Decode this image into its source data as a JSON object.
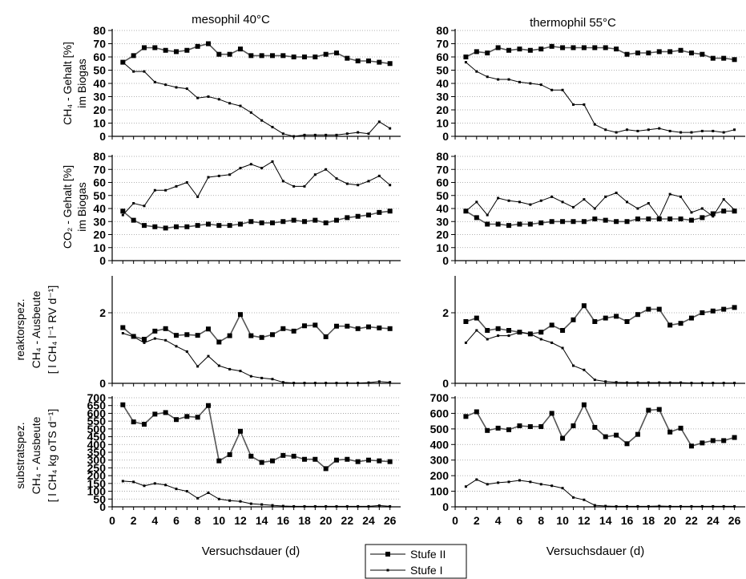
{
  "column_titles": [
    "mesophil 40°C",
    "thermophil 55°C"
  ],
  "xlabels": [
    "Versuchsdauer (d)",
    "Versuchsdauer (d)"
  ],
  "row_ylabels": [
    [
      "im Biogas",
      "CH₄ - Gehalt [%]"
    ],
    [
      "im Biogas",
      "CO₂ - Gehalt [%]"
    ],
    [
      "reaktorspez.",
      "CH₄ - Ausbeute",
      "[ l CH₄ l⁻¹ RV d⁻¹]"
    ],
    [
      "substratspez.",
      "CH₄ - Ausbeute",
      "[ l CH₄ kg oTS d⁻¹]"
    ]
  ],
  "x_ticks": [
    "0",
    "2",
    "4",
    "6",
    "8",
    "10",
    "12",
    "14",
    "16",
    "18",
    "20",
    "22",
    "24",
    "26"
  ],
  "legend": [
    {
      "label": "Stufe II"
    },
    {
      "label": "Stufe I"
    }
  ],
  "chart_data": [
    {
      "type": "line",
      "panel": "CH4 mesophil",
      "xlim": [
        0,
        27
      ],
      "ylim": [
        0,
        80
      ],
      "yticks": [
        0,
        10,
        20,
        30,
        40,
        50,
        60,
        70,
        80
      ],
      "x": [
        1,
        2,
        3,
        4,
        5,
        6,
        7,
        8,
        9,
        10,
        11,
        12,
        13,
        14,
        15,
        16,
        17,
        18,
        19,
        20,
        21,
        22,
        23,
        24,
        25,
        26
      ],
      "series": [
        {
          "name": "Stufe II",
          "values": [
            56,
            61,
            67,
            67,
            65,
            64,
            65,
            68,
            70,
            62,
            62,
            66,
            61,
            61,
            61,
            61,
            60,
            60,
            60,
            62,
            63,
            59,
            57,
            57,
            56,
            55
          ]
        },
        {
          "name": "Stufe I",
          "values": [
            56,
            49,
            49,
            41,
            39,
            37,
            36,
            29,
            30,
            28,
            25,
            23,
            18,
            12,
            7,
            2,
            0,
            1,
            1,
            1,
            1,
            2,
            3,
            2,
            11,
            6
          ]
        }
      ]
    },
    {
      "type": "line",
      "panel": "CH4 thermophil",
      "xlim": [
        0,
        27
      ],
      "ylim": [
        0,
        80
      ],
      "yticks": [
        0,
        10,
        20,
        30,
        40,
        50,
        60,
        70,
        80
      ],
      "x": [
        1,
        2,
        3,
        4,
        5,
        6,
        7,
        8,
        9,
        10,
        11,
        12,
        13,
        14,
        15,
        16,
        17,
        18,
        19,
        20,
        21,
        22,
        23,
        24,
        25,
        26
      ],
      "series": [
        {
          "name": "Stufe II",
          "values": [
            60,
            64,
            63,
            67,
            65,
            66,
            65,
            66,
            68,
            67,
            67,
            67,
            67,
            67,
            66,
            62,
            63,
            63,
            64,
            64,
            65,
            63,
            62,
            59,
            59,
            58
          ]
        },
        {
          "name": "Stufe I",
          "values": [
            56,
            49,
            45,
            43,
            43,
            41,
            40,
            39,
            35,
            35,
            24,
            24,
            9,
            5,
            3,
            5,
            4,
            5,
            6,
            4,
            3,
            3,
            4,
            4,
            3,
            5
          ]
        }
      ]
    },
    {
      "type": "line",
      "panel": "CO2 mesophil",
      "xlim": [
        0,
        27
      ],
      "ylim": [
        0,
        80
      ],
      "yticks": [
        0,
        10,
        20,
        30,
        40,
        50,
        60,
        70,
        80
      ],
      "x": [
        1,
        2,
        3,
        4,
        5,
        6,
        7,
        8,
        9,
        10,
        11,
        12,
        13,
        14,
        15,
        16,
        17,
        18,
        19,
        20,
        21,
        22,
        23,
        24,
        25,
        26
      ],
      "series": [
        {
          "name": "Stufe II",
          "values": [
            38,
            31,
            27,
            26,
            25,
            26,
            26,
            27,
            28,
            27,
            27,
            28,
            30,
            29,
            29,
            30,
            31,
            30,
            31,
            29,
            31,
            33,
            34,
            35,
            37,
            38
          ]
        },
        {
          "name": "Stufe I",
          "values": [
            35,
            44,
            42,
            54,
            54,
            57,
            60,
            49,
            64,
            65,
            66,
            71,
            74,
            71,
            76,
            61,
            57,
            57,
            66,
            70,
            63,
            59,
            58,
            61,
            65,
            58
          ]
        }
      ]
    },
    {
      "type": "line",
      "panel": "CO2 thermophil",
      "xlim": [
        0,
        27
      ],
      "ylim": [
        0,
        80
      ],
      "yticks": [
        0,
        10,
        20,
        30,
        40,
        50,
        60,
        70,
        80
      ],
      "x": [
        1,
        2,
        3,
        4,
        5,
        6,
        7,
        8,
        9,
        10,
        11,
        12,
        13,
        14,
        15,
        16,
        17,
        18,
        19,
        20,
        21,
        22,
        23,
        24,
        25,
        26
      ],
      "series": [
        {
          "name": "Stufe II",
          "values": [
            38,
            33,
            28,
            28,
            27,
            28,
            28,
            29,
            30,
            30,
            30,
            30,
            32,
            31,
            30,
            30,
            32,
            32,
            32,
            32,
            32,
            31,
            33,
            36,
            38,
            38
          ]
        },
        {
          "name": "Stufe I",
          "values": [
            38,
            45,
            35,
            48,
            46,
            45,
            43,
            46,
            49,
            45,
            41,
            47,
            40,
            49,
            52,
            45,
            40,
            44,
            33,
            51,
            49,
            37,
            40,
            34,
            47,
            39
          ]
        }
      ]
    },
    {
      "type": "line",
      "panel": "Ausbeute reaktorspez. mesophil",
      "xlim": [
        0,
        27
      ],
      "ylim": [
        0,
        3
      ],
      "yticks": [
        0,
        2
      ],
      "x": [
        1,
        2,
        3,
        4,
        5,
        6,
        7,
        8,
        9,
        10,
        11,
        12,
        13,
        14,
        15,
        16,
        17,
        18,
        19,
        20,
        21,
        22,
        23,
        24,
        25,
        26
      ],
      "series": [
        {
          "name": "Stufe II",
          "values": [
            1.58,
            1.33,
            1.25,
            1.48,
            1.55,
            1.36,
            1.38,
            1.36,
            1.54,
            1.17,
            1.35,
            1.95,
            1.35,
            1.3,
            1.38,
            1.55,
            1.48,
            1.63,
            1.65,
            1.32,
            1.62,
            1.62,
            1.55,
            1.6,
            1.57,
            1.55
          ]
        },
        {
          "name": "Stufe I",
          "values": [
            1.42,
            1.32,
            1.15,
            1.27,
            1.22,
            1.05,
            0.9,
            0.48,
            0.77,
            0.5,
            0.4,
            0.35,
            0.2,
            0.15,
            0.12,
            0.03,
            0.01,
            0.01,
            0.01,
            0.01,
            0.01,
            0.01,
            0.01,
            0.02,
            0.05,
            0.03
          ]
        }
      ]
    },
    {
      "type": "line",
      "panel": "Ausbeute reaktorspez. thermophil",
      "xlim": [
        0,
        27
      ],
      "ylim": [
        0,
        3
      ],
      "yticks": [
        0,
        2
      ],
      "x": [
        1,
        2,
        3,
        4,
        5,
        6,
        7,
        8,
        9,
        10,
        11,
        12,
        13,
        14,
        15,
        16,
        17,
        18,
        19,
        20,
        21,
        22,
        23,
        24,
        25,
        26
      ],
      "series": [
        {
          "name": "Stufe II",
          "values": [
            1.75,
            1.85,
            1.5,
            1.55,
            1.5,
            1.45,
            1.4,
            1.45,
            1.65,
            1.5,
            1.8,
            2.2,
            1.75,
            1.85,
            1.9,
            1.75,
            1.95,
            2.1,
            2.1,
            1.65,
            1.7,
            1.85,
            2.0,
            2.05,
            2.1,
            2.15
          ]
        },
        {
          "name": "Stufe I",
          "values": [
            1.15,
            1.5,
            1.25,
            1.35,
            1.35,
            1.45,
            1.4,
            1.25,
            1.15,
            1.0,
            0.5,
            0.38,
            0.1,
            0.05,
            0.03,
            0.02,
            0.02,
            0.02,
            0.02,
            0.02,
            0.02,
            0.01,
            0.01,
            0.01,
            0.01,
            0.01
          ]
        }
      ]
    },
    {
      "type": "line",
      "panel": "Ausbeute substratspez. mesophil",
      "xlim": [
        0,
        27
      ],
      "ylim": [
        0,
        700
      ],
      "yticks": [
        0,
        50,
        100,
        150,
        200,
        250,
        300,
        350,
        400,
        450,
        500,
        550,
        600,
        650,
        700
      ],
      "x": [
        1,
        2,
        3,
        4,
        5,
        6,
        7,
        8,
        9,
        10,
        11,
        12,
        13,
        14,
        15,
        16,
        17,
        18,
        19,
        20,
        21,
        22,
        23,
        24,
        25,
        26
      ],
      "series": [
        {
          "name": "Stufe II",
          "values": [
            655,
            545,
            530,
            595,
            605,
            560,
            580,
            575,
            650,
            295,
            335,
            485,
            325,
            285,
            295,
            330,
            325,
            305,
            305,
            245,
            300,
            305,
            290,
            300,
            295,
            290
          ]
        },
        {
          "name": "Stufe I",
          "values": [
            165,
            160,
            135,
            150,
            140,
            115,
            100,
            55,
            90,
            50,
            40,
            35,
            20,
            15,
            10,
            5,
            3,
            3,
            3,
            3,
            3,
            3,
            3,
            3,
            8,
            3
          ]
        }
      ]
    },
    {
      "type": "line",
      "panel": "Ausbeute substratspez. thermophil",
      "xlim": [
        0,
        27
      ],
      "ylim": [
        0,
        700
      ],
      "yticks": [
        0,
        100,
        200,
        300,
        400,
        500,
        600,
        700
      ],
      "x": [
        1,
        2,
        3,
        4,
        5,
        6,
        7,
        8,
        9,
        10,
        11,
        12,
        13,
        14,
        15,
        16,
        17,
        18,
        19,
        20,
        21,
        22,
        23,
        24,
        25,
        26
      ],
      "series": [
        {
          "name": "Stufe II",
          "values": [
            580,
            610,
            490,
            505,
            495,
            520,
            515,
            515,
            600,
            440,
            520,
            655,
            510,
            450,
            460,
            405,
            465,
            620,
            625,
            480,
            505,
            390,
            410,
            425,
            425,
            445
          ]
        },
        {
          "name": "Stufe I",
          "values": [
            130,
            175,
            145,
            155,
            160,
            170,
            160,
            145,
            135,
            120,
            60,
            45,
            10,
            5,
            3,
            3,
            3,
            3,
            5,
            3,
            3,
            3,
            3,
            3,
            3,
            3
          ]
        }
      ]
    }
  ]
}
